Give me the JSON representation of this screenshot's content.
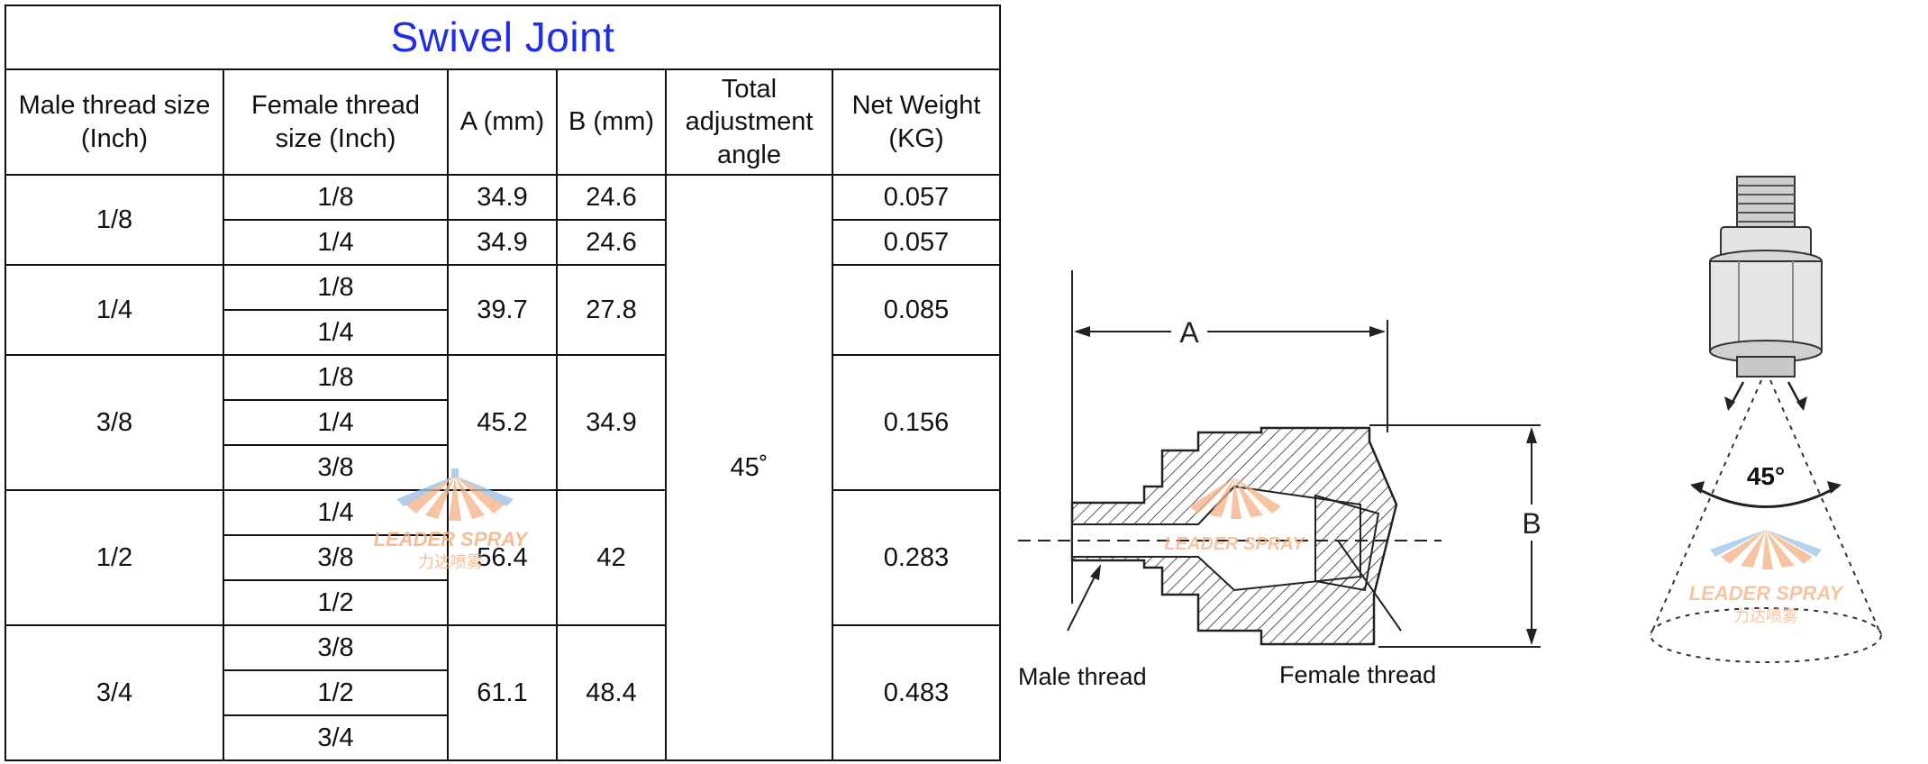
{
  "table": {
    "title": "Swivel Joint",
    "headers": {
      "male": "Male thread size (Inch)",
      "female": "Female thread size (Inch)",
      "a": "A (mm)",
      "b": "B (mm)",
      "angle": "Total adjustment angle",
      "weight": "Net Weight (KG)"
    },
    "angle_value": "45˚",
    "groups": [
      {
        "male": "1/8",
        "rows": [
          {
            "female": "1/8",
            "a": "34.9",
            "b": "24.6",
            "weight": "0.057"
          },
          {
            "female": "1/4",
            "a": "34.9",
            "b": "24.6",
            "weight": "0.057"
          }
        ]
      },
      {
        "male": "1/4",
        "female": [
          "1/8",
          "1/4"
        ],
        "a": "39.7",
        "b": "27.8",
        "weight": "0.085"
      },
      {
        "male": "3/8",
        "female": [
          "1/8",
          "1/4",
          "3/8"
        ],
        "a": "45.2",
        "b": "34.9",
        "weight": "0.156"
      },
      {
        "male": "1/2",
        "female": [
          "1/4",
          "3/8",
          "1/2"
        ],
        "a": "56.4",
        "b": "42",
        "weight": "0.283"
      },
      {
        "male": "3/4",
        "female": [
          "3/8",
          "1/2",
          "3/4"
        ],
        "a": "61.1",
        "b": "48.4",
        "weight": "0.483"
      }
    ]
  },
  "drawing": {
    "dim_a": "A",
    "dim_b": "B",
    "male_label": "Male thread",
    "female_label": "Female thread"
  },
  "nozzle": {
    "angle_label": "45°"
  },
  "watermark": {
    "brand": "LEADER SPRAY",
    "brand_cn": "力达喷雾"
  }
}
